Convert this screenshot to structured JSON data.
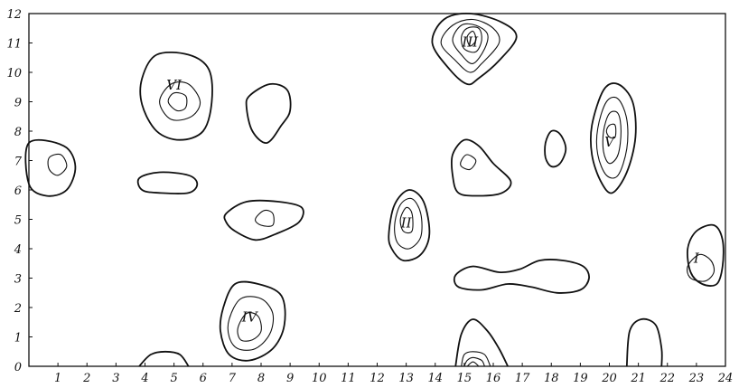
{
  "chart_data": {
    "type": "contour",
    "xlim": [
      0,
      24
    ],
    "ylim": [
      0,
      12
    ],
    "x_ticks": [
      "1",
      "2",
      "3",
      "4",
      "5",
      "6",
      "7",
      "8",
      "9",
      "10",
      "11",
      "12",
      "13",
      "14",
      "15",
      "16",
      "17",
      "18",
      "19",
      "20",
      "21",
      "22",
      "23",
      "24"
    ],
    "y_ticks": [
      "0",
      "1",
      "2",
      "3",
      "4",
      "5",
      "6",
      "7",
      "8",
      "9",
      "10",
      "11",
      "12"
    ],
    "peaks": [
      {
        "label": "I",
        "x": 23.0,
        "y": 3.7,
        "levels": 2
      },
      {
        "label": "II",
        "x": 13.0,
        "y": 4.9,
        "levels": 3
      },
      {
        "label": "III",
        "x": 15.2,
        "y": 11.0,
        "levels": 5
      },
      {
        "label": "IV",
        "x": 7.6,
        "y": 1.7,
        "levels": 3
      },
      {
        "label": "V",
        "x": 20.0,
        "y": 7.6,
        "levels": 4
      },
      {
        "label": "VI",
        "x": 5.0,
        "y": 9.6,
        "levels": 3
      }
    ],
    "contours": [
      {
        "id": "vi-outer",
        "pts": [
          [
            3.9,
            9.8
          ],
          [
            4.4,
            10.6
          ],
          [
            5.5,
            10.6
          ],
          [
            6.2,
            10.1
          ],
          [
            6.3,
            9.0
          ],
          [
            6.0,
            8.0
          ],
          [
            5.2,
            7.7
          ],
          [
            4.4,
            8.0
          ],
          [
            3.9,
            8.9
          ]
        ]
      },
      {
        "id": "vi-mid",
        "pts": [
          [
            4.5,
            9.0
          ],
          [
            4.9,
            9.6
          ],
          [
            5.5,
            9.6
          ],
          [
            5.9,
            9.0
          ],
          [
            5.6,
            8.5
          ],
          [
            4.9,
            8.4
          ]
        ]
      },
      {
        "id": "vi-inner",
        "pts": [
          [
            4.8,
            9.0
          ],
          [
            5.0,
            9.3
          ],
          [
            5.4,
            9.2
          ],
          [
            5.4,
            8.8
          ],
          [
            5.1,
            8.7
          ]
        ]
      },
      {
        "id": "a-outer",
        "pts": [
          [
            0.0,
            7.6
          ],
          [
            1.2,
            7.5
          ],
          [
            1.6,
            6.8
          ],
          [
            1.3,
            6.0
          ],
          [
            0.6,
            5.8
          ],
          [
            0.0,
            6.2
          ]
        ]
      },
      {
        "id": "a-inner",
        "pts": [
          [
            0.7,
            7.1
          ],
          [
            1.1,
            7.2
          ],
          [
            1.3,
            6.8
          ],
          [
            1.0,
            6.5
          ],
          [
            0.7,
            6.7
          ]
        ]
      },
      {
        "id": "b-outer",
        "pts": [
          [
            3.8,
            6.4
          ],
          [
            4.5,
            6.6
          ],
          [
            5.5,
            6.5
          ],
          [
            5.8,
            6.2
          ],
          [
            5.5,
            5.9
          ],
          [
            4.5,
            5.9
          ],
          [
            3.9,
            6.0
          ]
        ]
      },
      {
        "id": "c-outer",
        "pts": [
          [
            7.6,
            9.2
          ],
          [
            8.3,
            9.6
          ],
          [
            8.9,
            9.4
          ],
          [
            9.0,
            8.7
          ],
          [
            8.7,
            8.2
          ],
          [
            8.2,
            7.6
          ],
          [
            7.7,
            8.0
          ],
          [
            7.5,
            8.8
          ]
        ]
      },
      {
        "id": "d-outer",
        "pts": [
          [
            6.8,
            5.2
          ],
          [
            7.5,
            5.6
          ],
          [
            8.6,
            5.6
          ],
          [
            9.4,
            5.4
          ],
          [
            9.3,
            4.9
          ],
          [
            8.5,
            4.5
          ],
          [
            7.8,
            4.3
          ],
          [
            7.1,
            4.6
          ],
          [
            6.8,
            4.9
          ]
        ]
      },
      {
        "id": "d-inner",
        "pts": [
          [
            7.8,
            5.0
          ],
          [
            8.1,
            5.3
          ],
          [
            8.4,
            5.2
          ],
          [
            8.4,
            4.8
          ],
          [
            8.0,
            4.8
          ]
        ]
      },
      {
        "id": "ii-outer",
        "pts": [
          [
            12.4,
            4.5
          ],
          [
            12.6,
            5.5
          ],
          [
            13.1,
            6.0
          ],
          [
            13.6,
            5.6
          ],
          [
            13.8,
            4.5
          ],
          [
            13.5,
            3.8
          ],
          [
            12.9,
            3.6
          ],
          [
            12.5,
            4.0
          ]
        ]
      },
      {
        "id": "ii-mid",
        "pts": [
          [
            12.6,
            4.8
          ],
          [
            12.8,
            5.5
          ],
          [
            13.2,
            5.7
          ],
          [
            13.5,
            5.2
          ],
          [
            13.5,
            4.4
          ],
          [
            13.1,
            4.0
          ],
          [
            12.7,
            4.2
          ]
        ]
      },
      {
        "id": "ii-inner",
        "pts": [
          [
            12.8,
            5.0
          ],
          [
            13.0,
            5.4
          ],
          [
            13.2,
            5.2
          ],
          [
            13.2,
            4.6
          ],
          [
            12.9,
            4.6
          ]
        ]
      },
      {
        "id": "iii-l1",
        "pts": [
          [
            13.9,
            11.0
          ],
          [
            14.3,
            11.8
          ],
          [
            15.2,
            12.0
          ],
          [
            16.3,
            11.7
          ],
          [
            16.8,
            11.2
          ],
          [
            16.2,
            10.4
          ],
          [
            15.5,
            9.8
          ],
          [
            15.1,
            9.6
          ],
          [
            14.5,
            10.1
          ]
        ]
      },
      {
        "id": "iii-l2",
        "pts": [
          [
            14.2,
            11.0
          ],
          [
            14.6,
            11.6
          ],
          [
            15.3,
            11.8
          ],
          [
            16.0,
            11.5
          ],
          [
            16.2,
            11.0
          ],
          [
            15.6,
            10.3
          ],
          [
            15.2,
            10.0
          ],
          [
            14.7,
            10.4
          ]
        ]
      },
      {
        "id": "iii-l3",
        "pts": [
          [
            14.6,
            11.1
          ],
          [
            14.9,
            11.6
          ],
          [
            15.4,
            11.6
          ],
          [
            15.8,
            11.3
          ],
          [
            15.7,
            10.8
          ],
          [
            15.3,
            10.3
          ],
          [
            14.9,
            10.6
          ]
        ]
      },
      {
        "id": "iii-l4",
        "pts": [
          [
            14.9,
            11.2
          ],
          [
            15.1,
            11.5
          ],
          [
            15.5,
            11.5
          ],
          [
            15.6,
            11.1
          ],
          [
            15.4,
            10.7
          ],
          [
            15.0,
            10.8
          ]
        ]
      },
      {
        "id": "iii-l5",
        "pts": [
          [
            15.1,
            11.2
          ],
          [
            15.3,
            11.4
          ],
          [
            15.4,
            11.1
          ],
          [
            15.2,
            10.9
          ]
        ]
      },
      {
        "id": "e-outer",
        "pts": [
          [
            14.6,
            7.2
          ],
          [
            15.0,
            7.7
          ],
          [
            15.5,
            7.5
          ],
          [
            16.0,
            6.9
          ],
          [
            16.6,
            6.3
          ],
          [
            16.3,
            5.9
          ],
          [
            15.5,
            5.8
          ],
          [
            14.8,
            5.9
          ],
          [
            14.6,
            6.5
          ]
        ]
      },
      {
        "id": "e-inner",
        "pts": [
          [
            14.9,
            7.0
          ],
          [
            15.1,
            7.2
          ],
          [
            15.4,
            7.0
          ],
          [
            15.2,
            6.7
          ],
          [
            14.9,
            6.8
          ]
        ]
      },
      {
        "id": "f-outer",
        "pts": [
          [
            17.8,
            7.6
          ],
          [
            18.0,
            8.0
          ],
          [
            18.3,
            7.9
          ],
          [
            18.5,
            7.4
          ],
          [
            18.3,
            6.9
          ],
          [
            18.0,
            6.8
          ],
          [
            17.8,
            7.1
          ]
        ]
      },
      {
        "id": "v-l1",
        "pts": [
          [
            19.4,
            8.2
          ],
          [
            19.8,
            9.4
          ],
          [
            20.3,
            9.6
          ],
          [
            20.8,
            9.0
          ],
          [
            20.9,
            7.8
          ],
          [
            20.6,
            6.6
          ],
          [
            20.1,
            5.9
          ],
          [
            19.7,
            6.3
          ],
          [
            19.4,
            7.2
          ]
        ]
      },
      {
        "id": "v-l2",
        "pts": [
          [
            19.6,
            8.1
          ],
          [
            19.9,
            9.0
          ],
          [
            20.3,
            9.1
          ],
          [
            20.6,
            8.4
          ],
          [
            20.6,
            7.4
          ],
          [
            20.3,
            6.5
          ],
          [
            19.9,
            6.5
          ],
          [
            19.6,
            7.2
          ]
        ]
      },
      {
        "id": "v-l3",
        "pts": [
          [
            19.8,
            8.0
          ],
          [
            20.0,
            8.6
          ],
          [
            20.3,
            8.6
          ],
          [
            20.4,
            8.0
          ],
          [
            20.3,
            7.2
          ],
          [
            20.0,
            6.9
          ],
          [
            19.8,
            7.3
          ]
        ]
      },
      {
        "id": "v-l4",
        "pts": [
          [
            19.9,
            8.0
          ],
          [
            20.0,
            8.2
          ],
          [
            20.2,
            8.2
          ],
          [
            20.2,
            7.8
          ],
          [
            20.0,
            7.8
          ]
        ]
      },
      {
        "id": "g-outer",
        "pts": [
          [
            14.7,
            3.1
          ],
          [
            15.3,
            3.4
          ],
          [
            16.2,
            3.2
          ],
          [
            16.9,
            3.3
          ],
          [
            17.6,
            3.6
          ],
          [
            18.4,
            3.6
          ],
          [
            19.1,
            3.4
          ],
          [
            19.3,
            3.0
          ],
          [
            19.0,
            2.6
          ],
          [
            18.2,
            2.5
          ],
          [
            17.3,
            2.7
          ],
          [
            16.5,
            2.8
          ],
          [
            15.6,
            2.6
          ],
          [
            14.8,
            2.7
          ]
        ]
      },
      {
        "id": "i-outer",
        "pts": [
          [
            22.7,
            4.0
          ],
          [
            23.0,
            4.6
          ],
          [
            23.6,
            4.8
          ],
          [
            23.9,
            4.3
          ],
          [
            23.9,
            3.4
          ],
          [
            23.7,
            2.8
          ],
          [
            23.2,
            2.8
          ],
          [
            22.8,
            3.2
          ]
        ]
      },
      {
        "id": "i-inner",
        "pts": [
          [
            22.7,
            3.4
          ],
          [
            23.1,
            3.8
          ],
          [
            23.5,
            3.6
          ],
          [
            23.6,
            3.2
          ],
          [
            23.3,
            2.9
          ],
          [
            22.8,
            3.0
          ]
        ]
      },
      {
        "id": "iv-l1",
        "pts": [
          [
            6.7,
            2.0
          ],
          [
            7.1,
            2.8
          ],
          [
            7.9,
            2.8
          ],
          [
            8.7,
            2.4
          ],
          [
            8.8,
            1.4
          ],
          [
            8.4,
            0.6
          ],
          [
            7.6,
            0.2
          ],
          [
            6.9,
            0.4
          ],
          [
            6.6,
            1.2
          ]
        ]
      },
      {
        "id": "iv-l2",
        "pts": [
          [
            6.9,
            1.6
          ],
          [
            7.3,
            2.3
          ],
          [
            8.0,
            2.3
          ],
          [
            8.4,
            1.8
          ],
          [
            8.3,
            1.1
          ],
          [
            7.8,
            0.6
          ],
          [
            7.2,
            0.6
          ],
          [
            6.9,
            1.0
          ]
        ]
      },
      {
        "id": "iv-l3",
        "pts": [
          [
            7.2,
            1.3
          ],
          [
            7.5,
            1.8
          ],
          [
            7.9,
            1.7
          ],
          [
            8.0,
            1.2
          ],
          [
            7.7,
            0.9
          ],
          [
            7.3,
            0.9
          ]
        ]
      }
    ],
    "open_contours": [
      {
        "id": "h-outer",
        "pts": [
          [
            3.8,
            0.0
          ],
          [
            4.2,
            0.4
          ],
          [
            4.7,
            0.5
          ],
          [
            5.2,
            0.4
          ],
          [
            5.5,
            0.0
          ]
        ]
      },
      {
        "id": "j-outer",
        "pts": [
          [
            14.7,
            0.0
          ],
          [
            14.9,
            1.1
          ],
          [
            15.3,
            1.6
          ],
          [
            15.8,
            1.2
          ],
          [
            16.2,
            0.6
          ],
          [
            16.5,
            0.0
          ]
        ]
      },
      {
        "id": "j-mid",
        "pts": [
          [
            14.9,
            0.0
          ],
          [
            15.0,
            0.4
          ],
          [
            15.3,
            0.5
          ],
          [
            15.7,
            0.4
          ],
          [
            15.9,
            0.0
          ]
        ]
      },
      {
        "id": "j-inner",
        "pts": [
          [
            15.0,
            0.0
          ],
          [
            15.1,
            0.2
          ],
          [
            15.3,
            0.3
          ],
          [
            15.6,
            0.2
          ],
          [
            15.7,
            0.0
          ]
        ]
      },
      {
        "id": "j-core",
        "pts": [
          [
            15.1,
            0.0
          ],
          [
            15.3,
            0.15
          ],
          [
            15.5,
            0.0
          ]
        ]
      },
      {
        "id": "k-outer",
        "pts": [
          [
            20.6,
            0.0
          ],
          [
            20.7,
            1.2
          ],
          [
            21.1,
            1.6
          ],
          [
            21.6,
            1.4
          ],
          [
            21.8,
            0.6
          ],
          [
            21.8,
            0.0
          ]
        ]
      }
    ]
  }
}
